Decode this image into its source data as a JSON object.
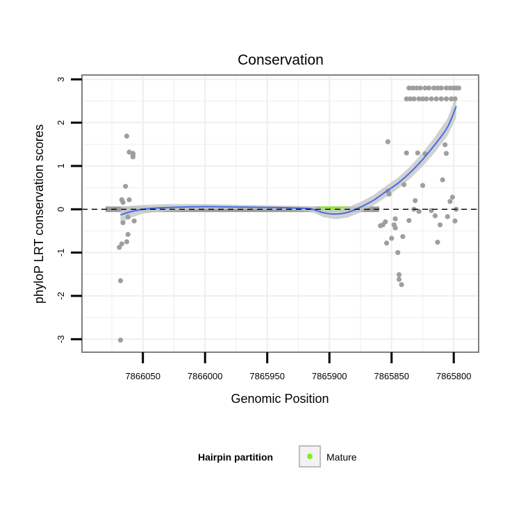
{
  "chart_data": {
    "type": "scatter",
    "title": "Conservation",
    "xlabel": "Genomic Position",
    "ylabel": "phyloP LRT conservation scores",
    "x_reversed": true,
    "xlim": [
      7866099,
      7865780
    ],
    "ylim": [
      -3.3,
      3.1
    ],
    "x_ticks": [
      7866050,
      7866000,
      7865950,
      7865900,
      7865850,
      7865800
    ],
    "x_tick_labels": [
      "7866050",
      "7866000",
      "7865950",
      "7865900",
      "7865850",
      "7865800"
    ],
    "y_ticks": [
      -3,
      -2,
      -1,
      0,
      1,
      2,
      3
    ],
    "y_tick_labels": [
      "-3",
      "-2",
      "-1",
      "0",
      "1",
      "2",
      "3"
    ],
    "reference_line": {
      "y": 0,
      "style": "dashed"
    },
    "highlight_band": {
      "x_start": 7865908,
      "x_end": 7865886,
      "y": 0,
      "label": "Mature"
    },
    "grey_band": {
      "x_start": 7866080,
      "x_end": 7865860,
      "y": 0
    },
    "points": [
      [
        7866061,
        1.32
      ],
      [
        7866058,
        1.21
      ],
      [
        7866058,
        1.29
      ],
      [
        7866058,
        1.25
      ],
      [
        7866063,
        1.69
      ],
      [
        7866061,
        0.22
      ],
      [
        7866062,
        -0.58
      ],
      [
        7866063,
        -0.75
      ],
      [
        7866064,
        0.53
      ],
      [
        7866062,
        -0.18
      ],
      [
        7866066,
        -0.31
      ],
      [
        7866067,
        -0.8
      ],
      [
        7866066,
        0.16
      ],
      [
        7866067,
        0.22
      ],
      [
        7866069,
        -0.88
      ],
      [
        7866068,
        -1.65
      ],
      [
        7866068,
        -3.02
      ],
      [
        7866057,
        -0.27
      ],
      [
        7865859,
        -0.38
      ],
      [
        7865857,
        -0.36
      ],
      [
        7865855,
        -0.29
      ],
      [
        7865853,
        1.56
      ],
      [
        7865852,
        0.35
      ],
      [
        7865853,
        0.42
      ],
      [
        7865854,
        -0.78
      ],
      [
        7865850,
        -0.67
      ],
      [
        7865848,
        -0.36
      ],
      [
        7865847,
        -0.22
      ],
      [
        7865847,
        -0.43
      ],
      [
        7865845,
        -1.0
      ],
      [
        7865844,
        -1.51
      ],
      [
        7865844,
        -1.62
      ],
      [
        7865842,
        -1.74
      ],
      [
        7865841,
        -0.63
      ],
      [
        7865840,
        0.57
      ],
      [
        7865838,
        1.3
      ],
      [
        7865836,
        -0.26
      ],
      [
        7865832,
        -0.0
      ],
      [
        7865831,
        0.2
      ],
      [
        7865829,
        1.3
      ],
      [
        7865828,
        -0.05
      ],
      [
        7865825,
        0.55
      ],
      [
        7865823,
        1.28
      ],
      [
        7865818,
        -0.03
      ],
      [
        7865815,
        -0.15
      ],
      [
        7865813,
        -0.76
      ],
      [
        7865811,
        -0.36
      ],
      [
        7865809,
        0.68
      ],
      [
        7865807,
        1.49
      ],
      [
        7865806,
        1.29
      ],
      [
        7865805,
        -0.17
      ],
      [
        7865803,
        0.18
      ],
      [
        7865801,
        0.28
      ],
      [
        7865799,
        -0.27
      ],
      [
        7865798,
        0.0
      ],
      [
        7865836,
        2.8
      ],
      [
        7865833,
        2.8
      ],
      [
        7865830,
        2.8
      ],
      [
        7865827,
        2.8
      ],
      [
        7865823,
        2.8
      ],
      [
        7865820,
        2.8
      ],
      [
        7865816,
        2.8
      ],
      [
        7865813,
        2.8
      ],
      [
        7865810,
        2.8
      ],
      [
        7865806,
        2.8
      ],
      [
        7865803,
        2.8
      ],
      [
        7865800,
        2.8
      ],
      [
        7865798,
        2.8
      ],
      [
        7865796,
        2.8
      ],
      [
        7865838,
        2.55
      ],
      [
        7865835,
        2.55
      ],
      [
        7865832,
        2.55
      ],
      [
        7865828,
        2.55
      ],
      [
        7865825,
        2.55
      ],
      [
        7865822,
        2.55
      ],
      [
        7865818,
        2.55
      ],
      [
        7865814,
        2.55
      ],
      [
        7865810,
        2.55
      ],
      [
        7865806,
        2.55
      ],
      [
        7865802,
        2.55
      ],
      [
        7865799,
        2.55
      ]
    ],
    "smooth_fit": [
      [
        7866068,
        -0.13
      ],
      [
        7866060,
        -0.06
      ],
      [
        7866050,
        0.0
      ],
      [
        7866030,
        0.04
      ],
      [
        7866000,
        0.06
      ],
      [
        7865970,
        0.05
      ],
      [
        7865945,
        0.04
      ],
      [
        7865930,
        0.03
      ],
      [
        7865915,
        0.01
      ],
      [
        7865905,
        -0.08
      ],
      [
        7865895,
        -0.11
      ],
      [
        7865885,
        -0.07
      ],
      [
        7865875,
        0.05
      ],
      [
        7865865,
        0.2
      ],
      [
        7865855,
        0.4
      ],
      [
        7865845,
        0.6
      ],
      [
        7865835,
        0.85
      ],
      [
        7865825,
        1.15
      ],
      [
        7865815,
        1.5
      ],
      [
        7865805,
        1.9
      ],
      [
        7865798,
        2.38
      ]
    ],
    "ci_half_width": [
      0.18,
      0.14,
      0.1,
      0.08,
      0.06,
      0.05,
      0.05,
      0.05,
      0.06,
      0.1,
      0.12,
      0.12,
      0.12,
      0.12,
      0.13,
      0.13,
      0.14,
      0.16,
      0.18,
      0.2,
      0.26
    ],
    "colors": {
      "points": "#9e9e9e",
      "fit_line": "#3f6ee8",
      "ci_band": "#c9c9c9",
      "grey_band": "#9a9a9a",
      "mature": "#88ee22",
      "grid": "#f0f0f0",
      "panel_border": "#7f7f7f"
    },
    "legend": {
      "title": "Hairpin partition",
      "items": [
        {
          "label": "Mature",
          "color": "#88ee22"
        }
      ],
      "placement": "bottom"
    }
  }
}
